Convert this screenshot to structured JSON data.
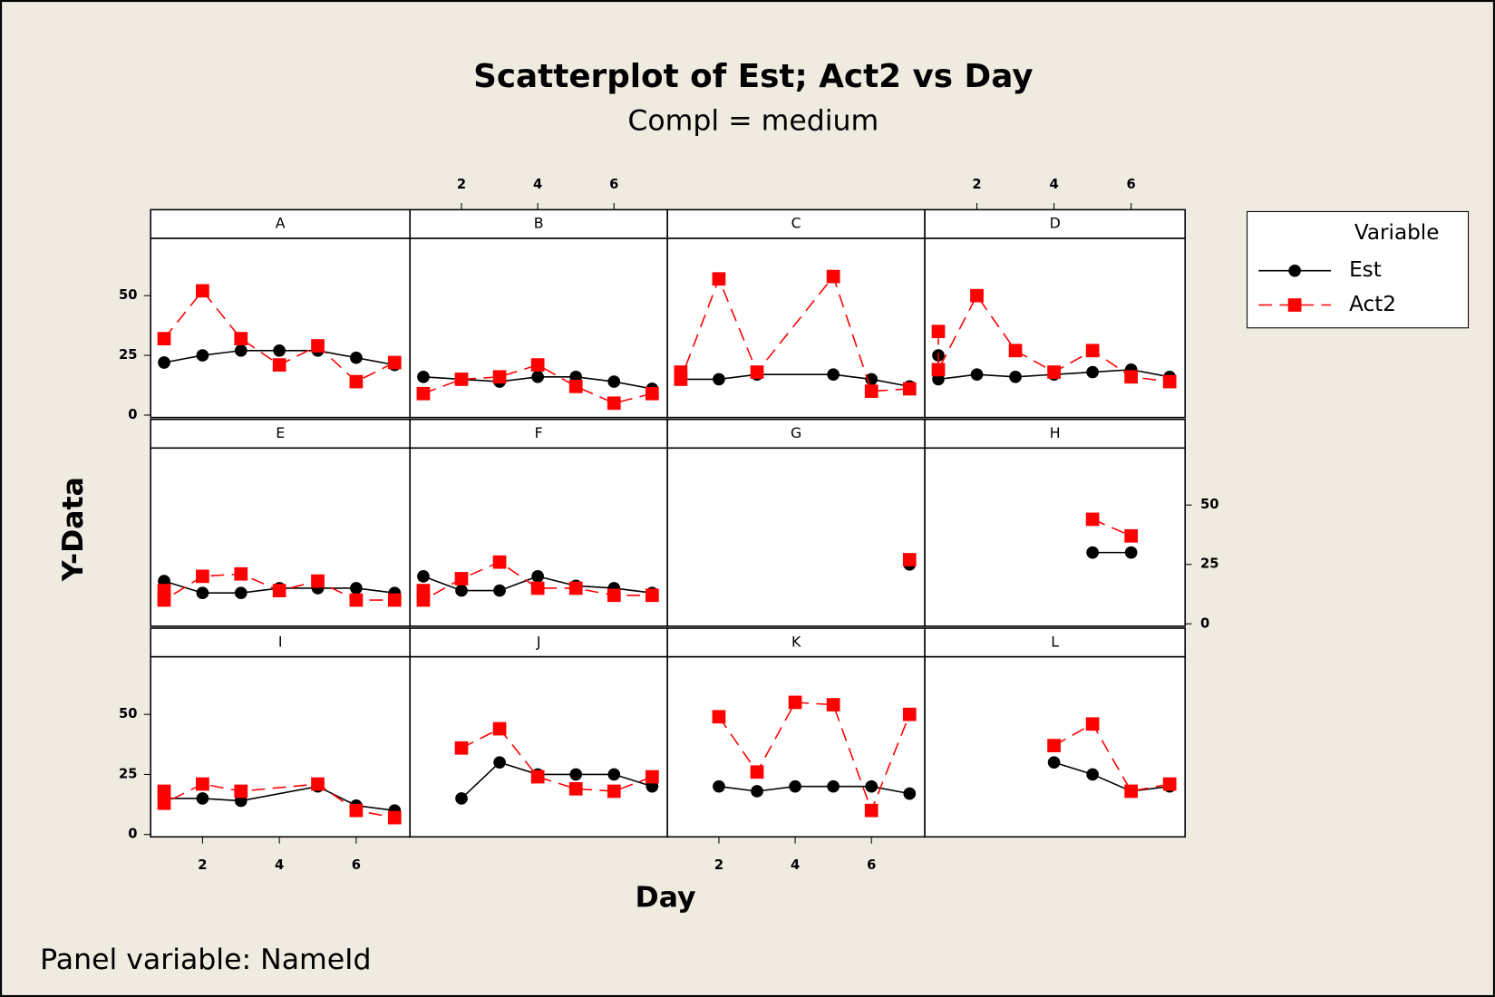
{
  "chart_data": {
    "type": "scatter",
    "title": "Scatterplot of Est; Act2 vs Day",
    "subtitle": "Compl = medium",
    "xlabel": "Day",
    "ylabel": "Y-Data",
    "footnote": "Panel variable: NameId",
    "legend_title": "Variable",
    "xlim": [
      0.65,
      7.4
    ],
    "xticks": [
      2,
      4,
      6
    ],
    "ylim": [
      -1,
      74
    ],
    "yticks": [
      0,
      25,
      50
    ],
    "series": [
      {
        "name": "Est",
        "color": "#000000",
        "marker": "circle",
        "dashed": false
      },
      {
        "name": "Act2",
        "color": "#ff0000",
        "marker": "square",
        "dashed": true
      }
    ],
    "panels": [
      {
        "name": "A",
        "series": [
          {
            "x": [
              1,
              2,
              3,
              4,
              5,
              6,
              7
            ],
            "values": [
              22,
              25,
              27,
              27,
              27,
              24,
              21
            ]
          },
          {
            "x": [
              1,
              2,
              3,
              4,
              5,
              6,
              7
            ],
            "values": [
              32,
              52,
              32,
              21,
              29,
              14,
              22
            ]
          }
        ]
      },
      {
        "name": "B",
        "series": [
          {
            "x": [
              1,
              2,
              3,
              4,
              5,
              6,
              7
            ],
            "values": [
              16,
              15,
              14,
              16,
              16,
              14,
              11
            ]
          },
          {
            "x": [
              1,
              2,
              3,
              4,
              5,
              6,
              7
            ],
            "values": [
              9,
              15,
              16,
              21,
              12,
              5,
              9
            ]
          }
        ]
      },
      {
        "name": "C",
        "series": [
          {
            "x": [
              1,
              2,
              3,
              5,
              6,
              7
            ],
            "values": [
              15,
              15,
              17,
              17,
              15,
              12
            ]
          },
          {
            "x": [
              1,
              1,
              2,
              3,
              5,
              6,
              7
            ],
            "values": [
              18,
              15,
              57,
              18,
              58,
              10,
              11
            ]
          }
        ]
      },
      {
        "name": "D",
        "series": [
          {
            "x": [
              1,
              1,
              2,
              3,
              4,
              5,
              6,
              7
            ],
            "values": [
              25,
              15,
              17,
              16,
              17,
              18,
              19,
              16
            ]
          },
          {
            "x": [
              1,
              1,
              2,
              3,
              4,
              5,
              6,
              7
            ],
            "values": [
              35,
              19,
              50,
              27,
              18,
              27,
              16,
              14
            ]
          }
        ]
      },
      {
        "name": "E",
        "series": [
          {
            "x": [
              1,
              2,
              3,
              4,
              5,
              6,
              7
            ],
            "values": [
              18,
              13,
              13,
              15,
              15,
              15,
              13
            ]
          },
          {
            "x": [
              1,
              1,
              2,
              3,
              4,
              5,
              6,
              7
            ],
            "values": [
              14,
              10,
              20,
              21,
              14,
              18,
              10,
              10
            ]
          }
        ]
      },
      {
        "name": "F",
        "series": [
          {
            "x": [
              1,
              2,
              3,
              4,
              5,
              6,
              7
            ],
            "values": [
              20,
              14,
              14,
              20,
              16,
              15,
              13
            ]
          },
          {
            "x": [
              1,
              1,
              2,
              3,
              4,
              5,
              6,
              7
            ],
            "values": [
              14,
              10,
              19,
              26,
              15,
              15,
              12,
              12
            ]
          }
        ]
      },
      {
        "name": "G",
        "series": [
          {
            "x": [
              7
            ],
            "values": [
              25
            ]
          },
          {
            "x": [
              7
            ],
            "values": [
              27
            ]
          }
        ]
      },
      {
        "name": "H",
        "series": [
          {
            "x": [
              5,
              6
            ],
            "values": [
              30,
              30
            ]
          },
          {
            "x": [
              5,
              6
            ],
            "values": [
              44,
              37
            ]
          }
        ]
      },
      {
        "name": "I",
        "series": [
          {
            "x": [
              1,
              2,
              3,
              5,
              6,
              7
            ],
            "values": [
              15,
              15,
              14,
              20,
              12,
              10
            ]
          },
          {
            "x": [
              1,
              1,
              2,
              3,
              5,
              6,
              7
            ],
            "values": [
              18,
              13,
              21,
              18,
              21,
              10,
              7
            ]
          }
        ]
      },
      {
        "name": "J",
        "series": [
          {
            "x": [
              2,
              3,
              4,
              5,
              6,
              7
            ],
            "values": [
              15,
              30,
              25,
              25,
              25,
              20
            ]
          },
          {
            "x": [
              2,
              3,
              4,
              5,
              6,
              7
            ],
            "values": [
              36,
              44,
              24,
              19,
              18,
              24
            ]
          }
        ]
      },
      {
        "name": "K",
        "series": [
          {
            "x": [
              2,
              3,
              4,
              5,
              6,
              7
            ],
            "values": [
              20,
              18,
              20,
              20,
              20,
              17
            ]
          },
          {
            "x": [
              2,
              3,
              4,
              5,
              6,
              7
            ],
            "values": [
              49,
              26,
              55,
              54,
              10,
              50
            ]
          }
        ]
      },
      {
        "name": "L",
        "series": [
          {
            "x": [
              4,
              5,
              6,
              7
            ],
            "values": [
              30,
              25,
              18,
              20
            ]
          },
          {
            "x": [
              4,
              5,
              6,
              7
            ],
            "values": [
              37,
              46,
              18,
              21
            ]
          }
        ]
      }
    ]
  }
}
